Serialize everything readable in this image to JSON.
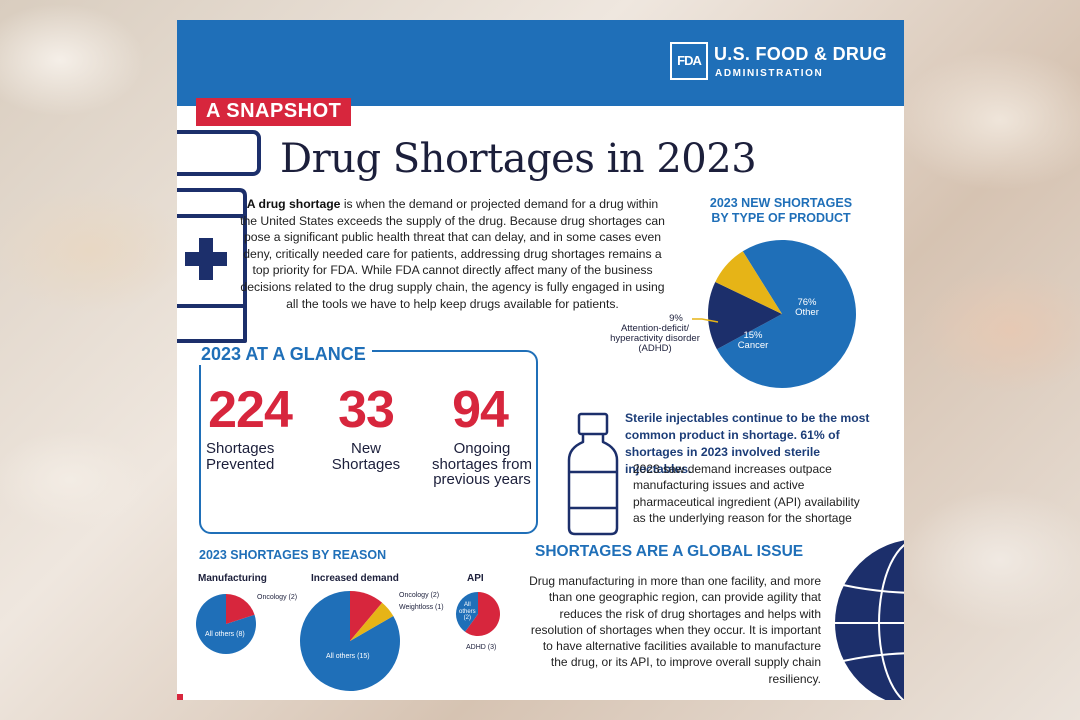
{
  "header": {
    "logo_mark": "FDA",
    "agency_line1": "U.S. FOOD & DRUG",
    "agency_line2": "ADMINISTRATION"
  },
  "banner": "A SNAPSHOT",
  "title": "Drug Shortages in 2023",
  "intro": {
    "lead": "A drug shortage",
    "text": " is when the demand or projected demand for a drug within the United States exceeds the supply of the drug. Because drug shortages can pose a significant public health threat that can delay, and in some cases even deny, critically needed care for patients, addressing drug shortages remains a top priority for FDA. While FDA cannot directly affect many of the business decisions related to the drug supply chain, the agency is fully engaged in using all the tools we have to help keep drugs available for patients."
  },
  "glance": {
    "title": "2023 AT A GLANCE",
    "stats": [
      {
        "number": "224",
        "label": "Shortages Prevented"
      },
      {
        "number": "33",
        "label": "New Shortages"
      },
      {
        "number": "94",
        "label": "Ongoing shortages from previous years"
      }
    ]
  },
  "colors": {
    "blue": "#1f6fb8",
    "navy": "#1c2f6b",
    "red": "#d7263d",
    "yellow": "#e6b417"
  },
  "chart_data": [
    {
      "type": "pie",
      "title": "2023 NEW SHORTAGES BY TYPE OF PRODUCT",
      "slices": [
        {
          "name": "Other",
          "pct_label": "76%",
          "value": 76
        },
        {
          "name": "Cancer",
          "pct_label": "15%",
          "value": 15
        },
        {
          "name": "Attention-deficit/ hyperactivity disorder (ADHD)",
          "pct_label": "9%",
          "value": 9
        }
      ]
    },
    {
      "type": "pie",
      "title": "Manufacturing",
      "slices": [
        {
          "name": "All others (8)",
          "value": 8
        },
        {
          "name": "Oncology (2)",
          "value": 2
        }
      ]
    },
    {
      "type": "pie",
      "title": "Increased demand",
      "slices": [
        {
          "name": "All others (15)",
          "value": 15
        },
        {
          "name": "Oncology (2)",
          "value": 2
        },
        {
          "name": "Weightloss (1)",
          "value": 1
        }
      ]
    },
    {
      "type": "pie",
      "title": "API",
      "slices": [
        {
          "name": "ADHD (3)",
          "value": 3
        },
        {
          "name": "All others (2)",
          "value": 2
        }
      ]
    }
  ],
  "sterile": {
    "bold": "Sterile injectables continue to be the most common product in shortage. 61% of shortages in 2023 involved sterile injectables.",
    "text": "2023 saw demand increases outpace manufacturing issues and active pharmaceutical ingredient (API) availability as the underlying reason for the shortage"
  },
  "reason": {
    "title": "2023 SHORTAGES BY REASON",
    "manufacturing": {
      "label": "Manufacturing",
      "others": "All others (8)",
      "oncology": "Oncology (2)"
    },
    "demand": {
      "label": "Increased demand",
      "others": "All others (15)",
      "oncology": "Oncology (2)",
      "weightloss": "Weightloss (1)"
    },
    "api": {
      "label": "API",
      "others_line1": "All",
      "others_line2": "others",
      "others_line3": "(2)",
      "adhd": "ADHD (3)"
    }
  },
  "global": {
    "title": "SHORTAGES ARE A GLOBAL ISSUE",
    "text": "Drug manufacturing in more than one facility, and more than one geographic region, can provide agility that reduces the risk of drug shortages and helps with resolution of shortages when they occur. It is important to have alternative facilities available to manufacture the drug, or its API, to improve overall supply chain resiliency."
  }
}
